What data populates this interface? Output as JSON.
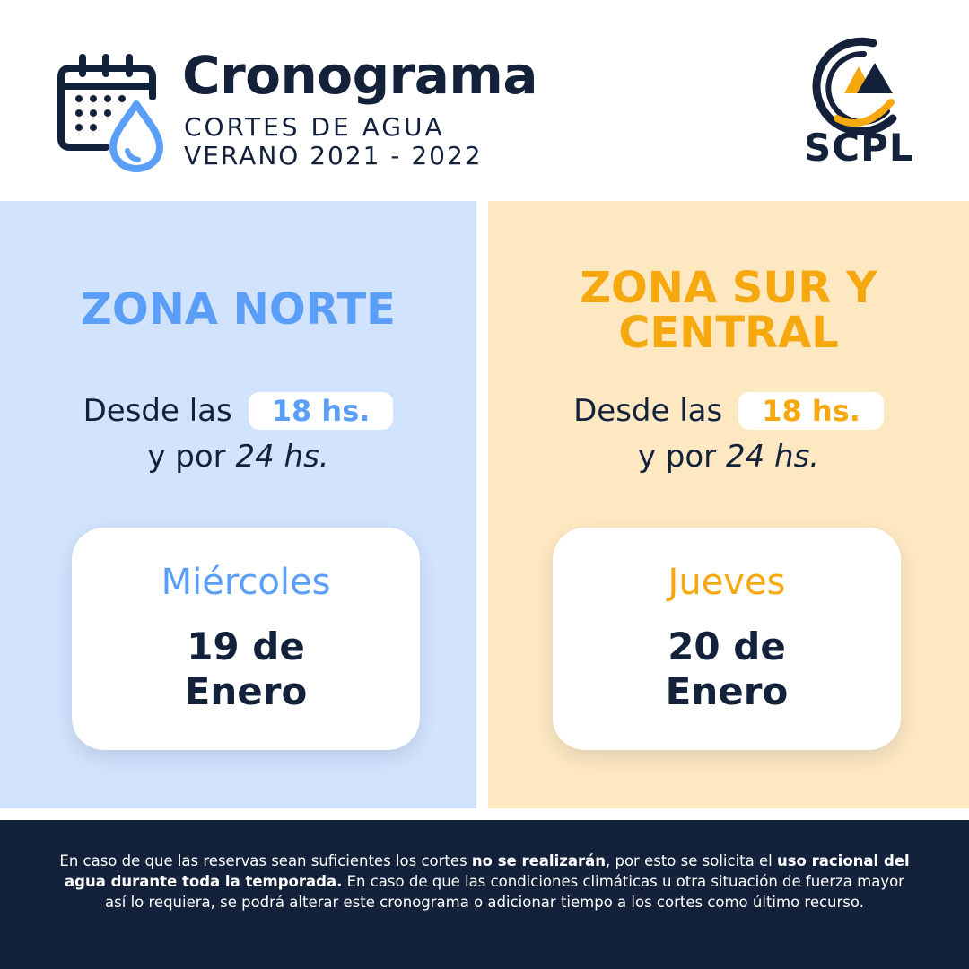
{
  "header": {
    "title": "Cronograma",
    "subtitle_line1": "CORTES DE AGUA",
    "subtitle_line2": "VERANO 2021 - 2022",
    "calendar_icon": "calendar-water-drop-icon",
    "logo_text": "SCPL"
  },
  "zones": [
    {
      "title_line1": "ZONA NORTE",
      "title_line2": "",
      "desde": "Desde las",
      "hora": "18 hs.",
      "y_por": "y por",
      "duracion": "24 hs.",
      "dia": "Miércoles",
      "fecha_line1": "19 de",
      "fecha_line2": "Enero",
      "accent_color": "#5a9ef7",
      "background_color": "#d2e3fd"
    },
    {
      "title_line1": "ZONA SUR Y",
      "title_line2": "CENTRAL",
      "desde": "Desde las",
      "hora": "18 hs.",
      "y_por": "y por",
      "duracion": "24 hs.",
      "dia": "Jueves",
      "fecha_line1": "20 de",
      "fecha_line2": "Enero",
      "accent_color": "#f6a80f",
      "background_color": "#fde8c2"
    }
  ],
  "footer": {
    "text_1": "En caso de que las reservas sean suficientes los cortes ",
    "bold_1": "no se realizarán",
    "text_2": ", por esto se solicita el ",
    "bold_2": "uso racional del agua durante toda la temporada.",
    "text_3": " En caso de que las condiciones climáticas u otra situación de fuerza mayor así lo requiera, se podrá alterar este cronograma o adicionar tiempo a los cortes como último recurso."
  },
  "colors": {
    "navy": "#13213b",
    "blue": "#5a9ef7",
    "orange": "#f6a80f"
  }
}
